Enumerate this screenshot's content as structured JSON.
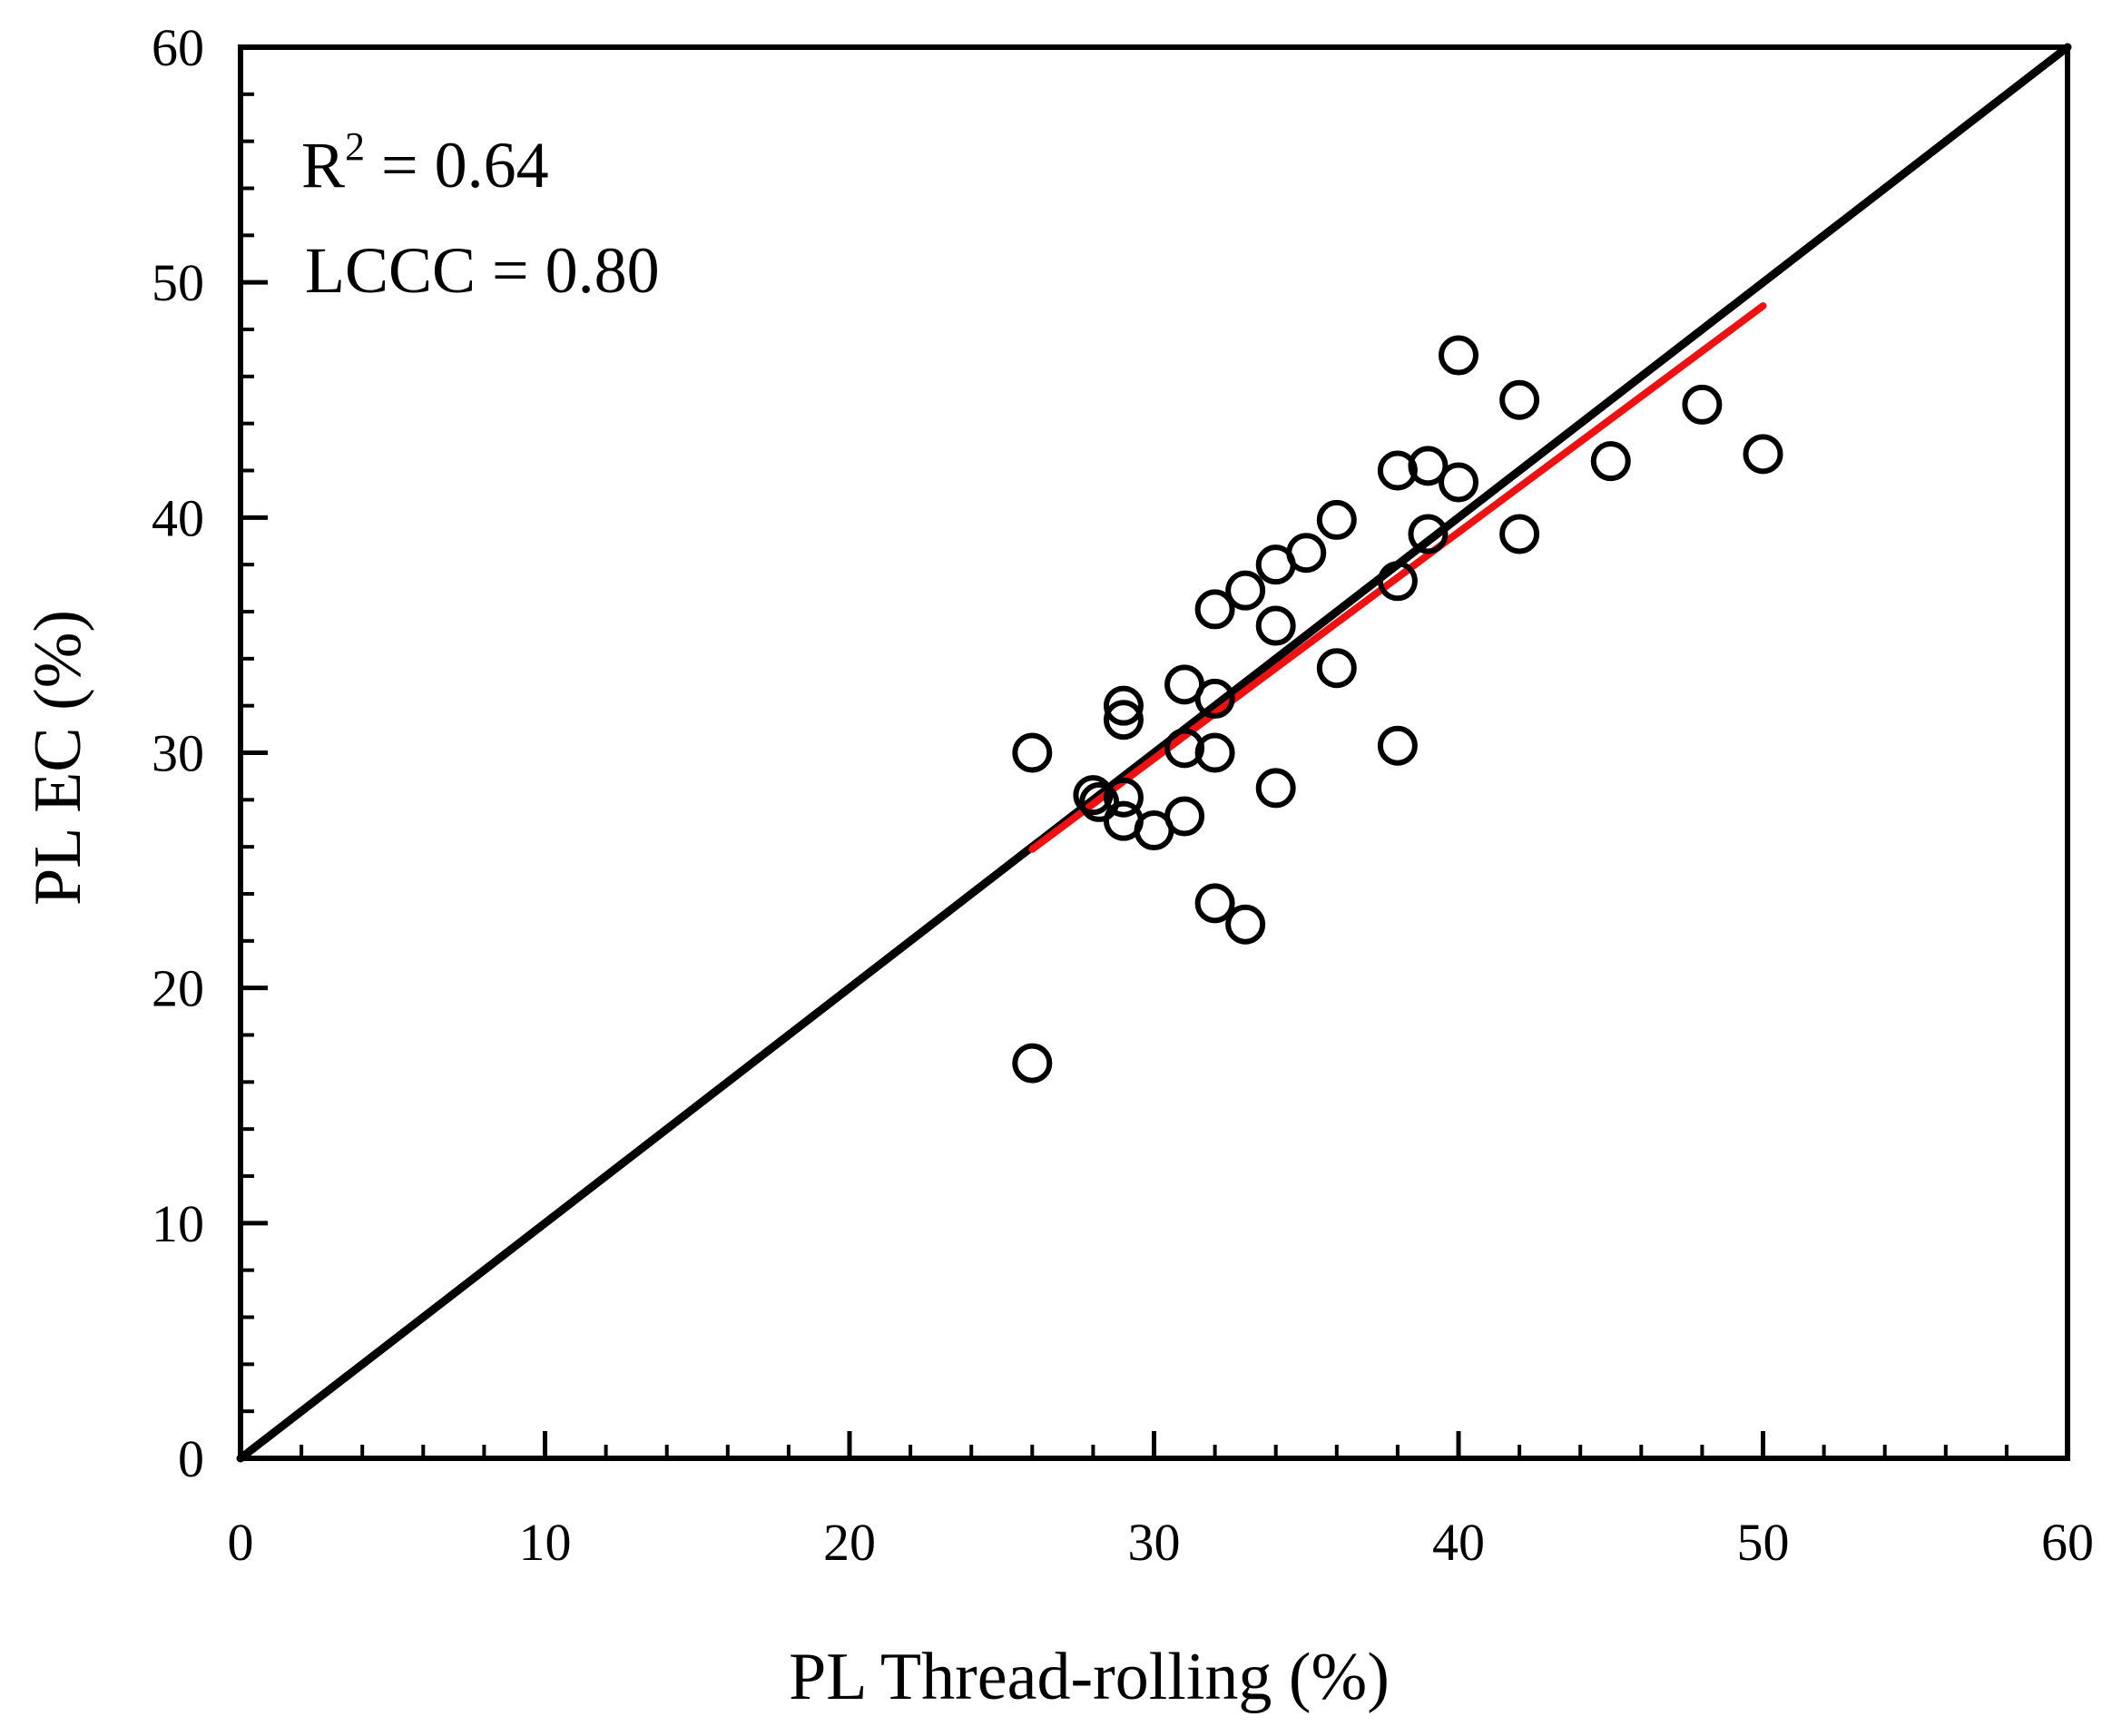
{
  "chart_data": {
    "type": "scatter",
    "xlabel": "PL Thread-rolling (%)",
    "ylabel": "PL EC (%)",
    "xlim": [
      0,
      60
    ],
    "ylim": [
      0,
      60
    ],
    "x_ticks": [
      0,
      10,
      20,
      30,
      40,
      50,
      60
    ],
    "y_ticks": [
      0,
      10,
      20,
      30,
      40,
      50,
      60
    ],
    "x_tick_labels": [
      "0",
      "10",
      "20",
      "30",
      "40",
      "50",
      "60"
    ],
    "y_tick_labels": [
      "0",
      "10",
      "20",
      "30",
      "40",
      "50",
      "60"
    ],
    "minor_tick_step": 2,
    "grid": false,
    "annotations": {
      "r2_label": "R",
      "r2_sup": "2",
      "r2_value": " = 0.64",
      "lccc": "LCCC = 0.80"
    },
    "series": [
      {
        "name": "observations",
        "marker": "open-circle",
        "color": "#000000",
        "points": [
          [
            26,
            30.0
          ],
          [
            26,
            16.8
          ],
          [
            28,
            28.2
          ],
          [
            28.2,
            27.9
          ],
          [
            29,
            32.0
          ],
          [
            29,
            31.4
          ],
          [
            29,
            28.1
          ],
          [
            29,
            27.1
          ],
          [
            30,
            26.7
          ],
          [
            31,
            32.9
          ],
          [
            31,
            30.2
          ],
          [
            31,
            27.3
          ],
          [
            32,
            36.1
          ],
          [
            32,
            32.3
          ],
          [
            32,
            30.0
          ],
          [
            32,
            23.6
          ],
          [
            33,
            36.9
          ],
          [
            33,
            22.7
          ],
          [
            34,
            38.0
          ],
          [
            34,
            35.4
          ],
          [
            34,
            28.5
          ],
          [
            35,
            38.5
          ],
          [
            36,
            39.9
          ],
          [
            36,
            33.6
          ],
          [
            38,
            42.0
          ],
          [
            38,
            37.3
          ],
          [
            38,
            30.3
          ],
          [
            39,
            42.2
          ],
          [
            39,
            39.3
          ],
          [
            40,
            46.9
          ],
          [
            40,
            41.5
          ],
          [
            42,
            45.0
          ],
          [
            42,
            39.3
          ],
          [
            45,
            42.4
          ],
          [
            48,
            44.8
          ],
          [
            50,
            42.7
          ]
        ]
      }
    ],
    "lines": [
      {
        "name": "1:1 line",
        "color": "#000000",
        "from": [
          0,
          0
        ],
        "to": [
          60,
          60
        ]
      },
      {
        "name": "regression line",
        "color": "#ee1111",
        "from": [
          26,
          25.9
        ],
        "to": [
          50,
          49.0
        ]
      }
    ]
  }
}
